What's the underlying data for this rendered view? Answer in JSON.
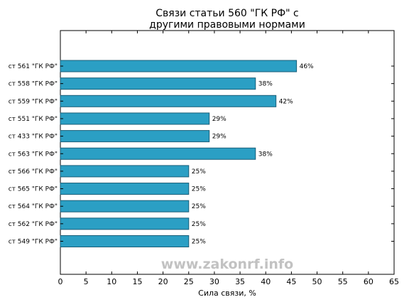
{
  "chart_data": {
    "type": "bar",
    "orientation": "horizontal",
    "title": [
      "Связи статьи 560 \"ГК РФ\" с",
      "другими правовыми нормами"
    ],
    "xlabel": "Сила связи, %",
    "ylabel": "",
    "xlim": [
      0,
      65
    ],
    "xticks": [
      "0",
      "5",
      "10",
      "15",
      "20",
      "25",
      "30",
      "35",
      "40",
      "45",
      "50",
      "55",
      "60",
      "65"
    ],
    "grid": false,
    "categories": [
      "ст 561 \"ГК РФ\"",
      "ст 558 \"ГК РФ\"",
      "ст 559 \"ГК РФ\"",
      "ст 551 \"ГК РФ\"",
      "ст 433 \"ГК РФ\"",
      "ст 563 \"ГК РФ\"",
      "ст 566 \"ГК РФ\"",
      "ст 565 \"ГК РФ\"",
      "ст 564 \"ГК РФ\"",
      "ст 562 \"ГК РФ\"",
      "ст 549 \"ГК РФ\""
    ],
    "values": [
      46,
      38,
      42,
      29,
      29,
      38,
      25,
      25,
      25,
      25,
      25
    ],
    "value_labels": [
      "46%",
      "38%",
      "42%",
      "29%",
      "29%",
      "38%",
      "25%",
      "25%",
      "25%",
      "25%",
      "25%"
    ],
    "bar_color": "#2b9fc4",
    "bar_edge_color": "#1a5e78",
    "watermark": "www.zakonrf.info"
  }
}
